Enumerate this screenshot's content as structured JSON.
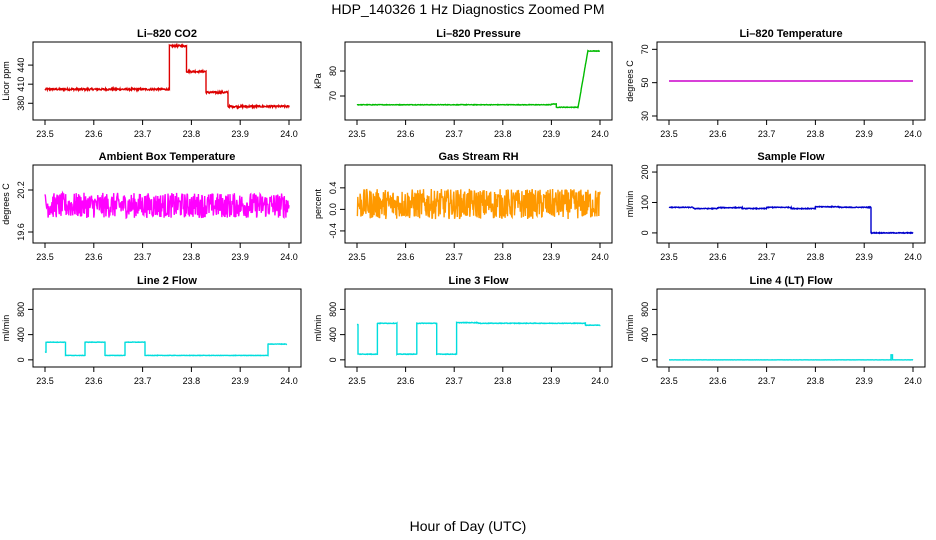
{
  "figure": {
    "title": "HDP_140326  1 Hz Diagnostics Zoomed PM",
    "xlabel": "Hour of Day (UTC)"
  },
  "chart_data": [
    {
      "type": "line",
      "title": "Li–820 CO2",
      "ylabel": "Licor ppm",
      "color": "#dd0000",
      "xlim": [
        23.5,
        24.0
      ],
      "ylim": [
        360,
        470
      ],
      "xticks": [
        23.5,
        23.6,
        23.7,
        23.8,
        23.9,
        24.0
      ],
      "xtick_labels": [
        "23.5",
        "23.6",
        "23.7",
        "23.8",
        "23.9",
        "24.0"
      ],
      "yticks": [
        380,
        410,
        440
      ],
      "ytick_labels": [
        "380",
        "410",
        "440"
      ],
      "noise": 1.5,
      "segments": [
        [
          23.5,
          23.755,
          402
        ],
        [
          23.755,
          23.79,
          470
        ],
        [
          23.79,
          23.83,
          430
        ],
        [
          23.83,
          23.875,
          397
        ],
        [
          23.875,
          24.0,
          375
        ]
      ]
    },
    {
      "type": "line",
      "title": "Li–820 Pressure",
      "ylabel": "kPa",
      "color": "#00bb00",
      "xlim": [
        23.5,
        24.0
      ],
      "ylim": [
        62,
        90
      ],
      "xticks": [
        23.5,
        23.6,
        23.7,
        23.8,
        23.9,
        24.0
      ],
      "xtick_labels": [
        "23.5",
        "23.6",
        "23.7",
        "23.8",
        "23.9",
        "24.0"
      ],
      "yticks": [
        70,
        80
      ],
      "ytick_labels": [
        "70",
        "80"
      ],
      "noise": 0.1,
      "segments": [
        [
          23.5,
          23.9,
          66.5
        ],
        [
          23.9,
          23.91,
          66.8
        ],
        [
          23.91,
          23.955,
          65.5
        ]
      ],
      "ramp": [
        23.955,
        23.975,
        65.5,
        88
      ],
      "tail": [
        23.975,
        24.0,
        88
      ]
    },
    {
      "type": "line",
      "title": "Li–820 Temperature",
      "ylabel": "degrees C",
      "color": "#cc00cc",
      "xlim": [
        23.5,
        24.0
      ],
      "ylim": [
        30,
        72
      ],
      "xticks": [
        23.5,
        23.6,
        23.7,
        23.8,
        23.9,
        24.0
      ],
      "xtick_labels": [
        "23.5",
        "23.6",
        "23.7",
        "23.8",
        "23.9",
        "24.0"
      ],
      "yticks": [
        30,
        50,
        70
      ],
      "ytick_labels": [
        "30",
        "50",
        "70"
      ],
      "noise": 0,
      "segments": [
        [
          23.5,
          24.0,
          51
        ]
      ]
    },
    {
      "type": "line",
      "title": "Ambient Box Temperature",
      "ylabel": "degrees C",
      "color": "#ff00ff",
      "xlim": [
        23.5,
        24.0
      ],
      "ylim": [
        19.5,
        20.5
      ],
      "xticks": [
        23.5,
        23.6,
        23.7,
        23.8,
        23.9,
        24.0
      ],
      "xtick_labels": [
        "23.5",
        "23.6",
        "23.7",
        "23.8",
        "23.9",
        "24.0"
      ],
      "yticks": [
        19.6,
        20.2
      ],
      "ytick_labels": [
        "19.6",
        "20.2"
      ],
      "noise": 0.18,
      "segments": [
        [
          23.5,
          24.0,
          19.98
        ]
      ]
    },
    {
      "type": "line",
      "title": "Gas Stream RH",
      "ylabel": "percent",
      "color": "#ff9900",
      "xlim": [
        23.5,
        24.0
      ],
      "ylim": [
        -0.55,
        0.75
      ],
      "xticks": [
        23.5,
        23.6,
        23.7,
        23.8,
        23.9,
        24.0
      ],
      "xtick_labels": [
        "23.5",
        "23.6",
        "23.7",
        "23.8",
        "23.9",
        "24.0"
      ],
      "yticks": [
        -0.4,
        0.0,
        0.4
      ],
      "ytick_labels": [
        "-0.4",
        "0.0",
        "0.4"
      ],
      "noise": 0.28,
      "segments": [
        [
          23.5,
          24.0,
          0.1
        ]
      ]
    },
    {
      "type": "line",
      "title": "Sample Flow",
      "ylabel": "ml/min",
      "color": "#0000cc",
      "xlim": [
        23.5,
        24.0
      ],
      "ylim": [
        -20,
        210
      ],
      "xticks": [
        23.5,
        23.6,
        23.7,
        23.8,
        23.9,
        24.0
      ],
      "xtick_labels": [
        "23.5",
        "23.6",
        "23.7",
        "23.8",
        "23.9",
        "24.0"
      ],
      "yticks": [
        0,
        100,
        200
      ],
      "ytick_labels": [
        "0",
        "100",
        "200"
      ],
      "noise": 1.2,
      "segments": [
        [
          23.5,
          23.55,
          84
        ],
        [
          23.55,
          23.6,
          80
        ],
        [
          23.6,
          23.65,
          83
        ],
        [
          23.65,
          23.7,
          80
        ],
        [
          23.7,
          23.75,
          84
        ],
        [
          23.75,
          23.8,
          80
        ],
        [
          23.8,
          23.85,
          86
        ],
        [
          23.85,
          23.914,
          84
        ],
        [
          23.914,
          24.0,
          0
        ]
      ]
    },
    {
      "type": "line",
      "title": "Line 2 Flow",
      "ylabel": "ml/min",
      "color": "#00dddd",
      "xlim": [
        23.5,
        24.0
      ],
      "ylim": [
        -50,
        1060
      ],
      "xticks": [
        23.5,
        23.6,
        23.7,
        23.8,
        23.9,
        24.0
      ],
      "xtick_labels": [
        "23.5",
        "23.6",
        "23.7",
        "23.8",
        "23.9",
        "24.0"
      ],
      "yticks": [
        0,
        400,
        800
      ],
      "ytick_labels": [
        "0",
        "400",
        "800"
      ],
      "noise": 3,
      "segments": [
        [
          23.5,
          23.502,
          120
        ],
        [
          23.502,
          23.542,
          280
        ],
        [
          23.542,
          23.582,
          70
        ],
        [
          23.582,
          23.623,
          280
        ],
        [
          23.623,
          23.664,
          70
        ],
        [
          23.664,
          23.705,
          280
        ],
        [
          23.705,
          23.957,
          70
        ],
        [
          23.957,
          23.995,
          250
        ]
      ]
    },
    {
      "type": "line",
      "title": "Line 3 Flow",
      "ylabel": "ml/min",
      "color": "#00dddd",
      "xlim": [
        23.5,
        24.0
      ],
      "ylim": [
        -50,
        1060
      ],
      "xticks": [
        23.5,
        23.6,
        23.7,
        23.8,
        23.9,
        24.0
      ],
      "xtick_labels": [
        "23.5",
        "23.6",
        "23.7",
        "23.8",
        "23.9",
        "24.0"
      ],
      "yticks": [
        0,
        400,
        800
      ],
      "ytick_labels": [
        "0",
        "400",
        "800"
      ],
      "noise": 4,
      "segments": [
        [
          23.5,
          23.502,
          560
        ],
        [
          23.502,
          23.542,
          90
        ],
        [
          23.542,
          23.582,
          580
        ],
        [
          23.582,
          23.623,
          90
        ],
        [
          23.623,
          23.664,
          580
        ],
        [
          23.664,
          23.705,
          90
        ],
        [
          23.705,
          23.75,
          590
        ],
        [
          23.75,
          23.97,
          580
        ],
        [
          23.97,
          24.0,
          550
        ]
      ]
    },
    {
      "type": "line",
      "title": "Line 4 (LT) Flow",
      "ylabel": "ml/min",
      "color": "#00dddd",
      "xlim": [
        23.5,
        24.0
      ],
      "ylim": [
        -50,
        1060
      ],
      "xticks": [
        23.5,
        23.6,
        23.7,
        23.8,
        23.9,
        24.0
      ],
      "xtick_labels": [
        "23.5",
        "23.6",
        "23.7",
        "23.8",
        "23.9",
        "24.0"
      ],
      "yticks": [
        0,
        400,
        800
      ],
      "ytick_labels": [
        "0",
        "400",
        "800"
      ],
      "noise": 1,
      "segments": [
        [
          23.5,
          23.955,
          0
        ],
        [
          23.955,
          23.958,
          80
        ],
        [
          23.958,
          24.0,
          0
        ]
      ]
    }
  ]
}
